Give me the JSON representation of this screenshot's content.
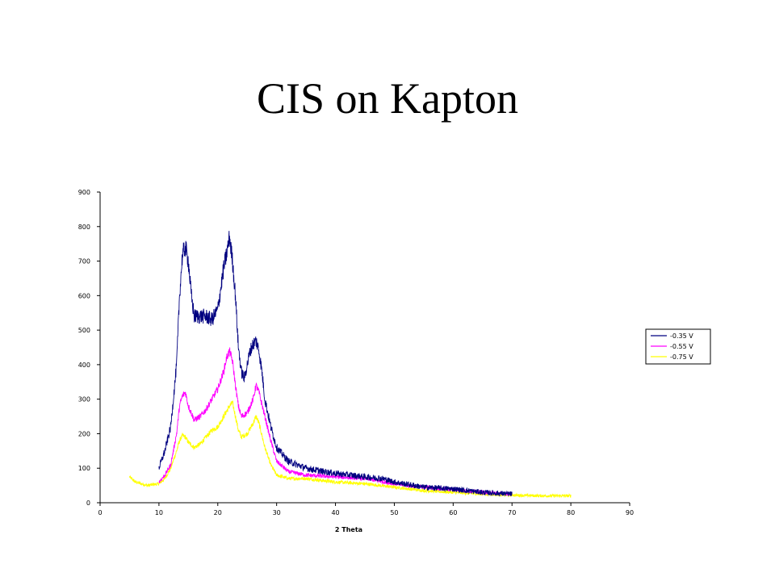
{
  "slide": {
    "title": "CIS on Kapton"
  },
  "chart_data": {
    "type": "line",
    "title": "",
    "xlabel": "2 Theta",
    "ylabel": "",
    "xlim": [
      0,
      90
    ],
    "ylim": [
      0,
      900
    ],
    "xticks": [
      0,
      10,
      20,
      30,
      40,
      50,
      60,
      70,
      80,
      90
    ],
    "yticks": [
      0,
      100,
      200,
      300,
      400,
      500,
      600,
      700,
      800,
      900
    ],
    "grid": false,
    "legend": "right",
    "series": [
      {
        "name": "-0.35 V",
        "color": "#000080",
        "noise": 14,
        "x": [
          10,
          11,
          12,
          13,
          13.5,
          14,
          14.5,
          15,
          15.5,
          16,
          17,
          18,
          19,
          20,
          21,
          21.5,
          22,
          22.5,
          23,
          23.5,
          24,
          24.5,
          25,
          25.5,
          26,
          26.5,
          27,
          27.5,
          28,
          29,
          30,
          32,
          35,
          38,
          40,
          45,
          48,
          50,
          55,
          60,
          65,
          70
        ],
        "y": [
          100,
          150,
          220,
          400,
          600,
          720,
          740,
          700,
          600,
          540,
          540,
          540,
          530,
          560,
          680,
          720,
          770,
          700,
          600,
          450,
          380,
          360,
          400,
          440,
          460,
          470,
          440,
          380,
          300,
          220,
          160,
          120,
          100,
          90,
          85,
          75,
          70,
          60,
          45,
          40,
          30,
          25
        ]
      },
      {
        "name": "-0.55 V",
        "color": "#ff00ff",
        "noise": 9,
        "x": [
          10,
          11,
          12,
          13,
          13.5,
          14,
          14.5,
          15,
          16,
          17,
          18,
          19,
          20,
          21,
          21.5,
          22,
          22.5,
          23,
          23.5,
          24,
          25,
          26,
          26.5,
          27,
          28,
          29,
          30,
          32,
          35,
          40,
          45,
          50,
          55,
          60,
          65,
          70
        ],
        "y": [
          60,
          80,
          110,
          200,
          280,
          310,
          320,
          280,
          240,
          250,
          270,
          300,
          330,
          380,
          420,
          440,
          410,
          340,
          280,
          250,
          260,
          300,
          340,
          320,
          250,
          180,
          120,
          90,
          80,
          75,
          70,
          55,
          45,
          38,
          30,
          25
        ]
      },
      {
        "name": "-0.75 V",
        "color": "#ffff00",
        "noise": 8,
        "x": [
          5,
          6,
          8,
          10,
          11,
          12,
          13,
          13.5,
          14,
          14.5,
          15,
          16,
          17,
          18,
          19,
          20,
          21,
          22,
          22.5,
          23,
          23.5,
          24,
          25,
          26,
          26.5,
          27,
          28,
          29,
          30,
          32,
          35,
          40,
          45,
          50,
          55,
          60,
          65,
          70,
          75,
          80
        ],
        "y": [
          75,
          60,
          50,
          55,
          70,
          100,
          150,
          180,
          195,
          190,
          175,
          160,
          170,
          190,
          210,
          220,
          250,
          280,
          290,
          250,
          210,
          190,
          200,
          230,
          250,
          230,
          160,
          110,
          80,
          70,
          70,
          60,
          55,
          45,
          35,
          30,
          25,
          22,
          20,
          20
        ]
      }
    ]
  }
}
